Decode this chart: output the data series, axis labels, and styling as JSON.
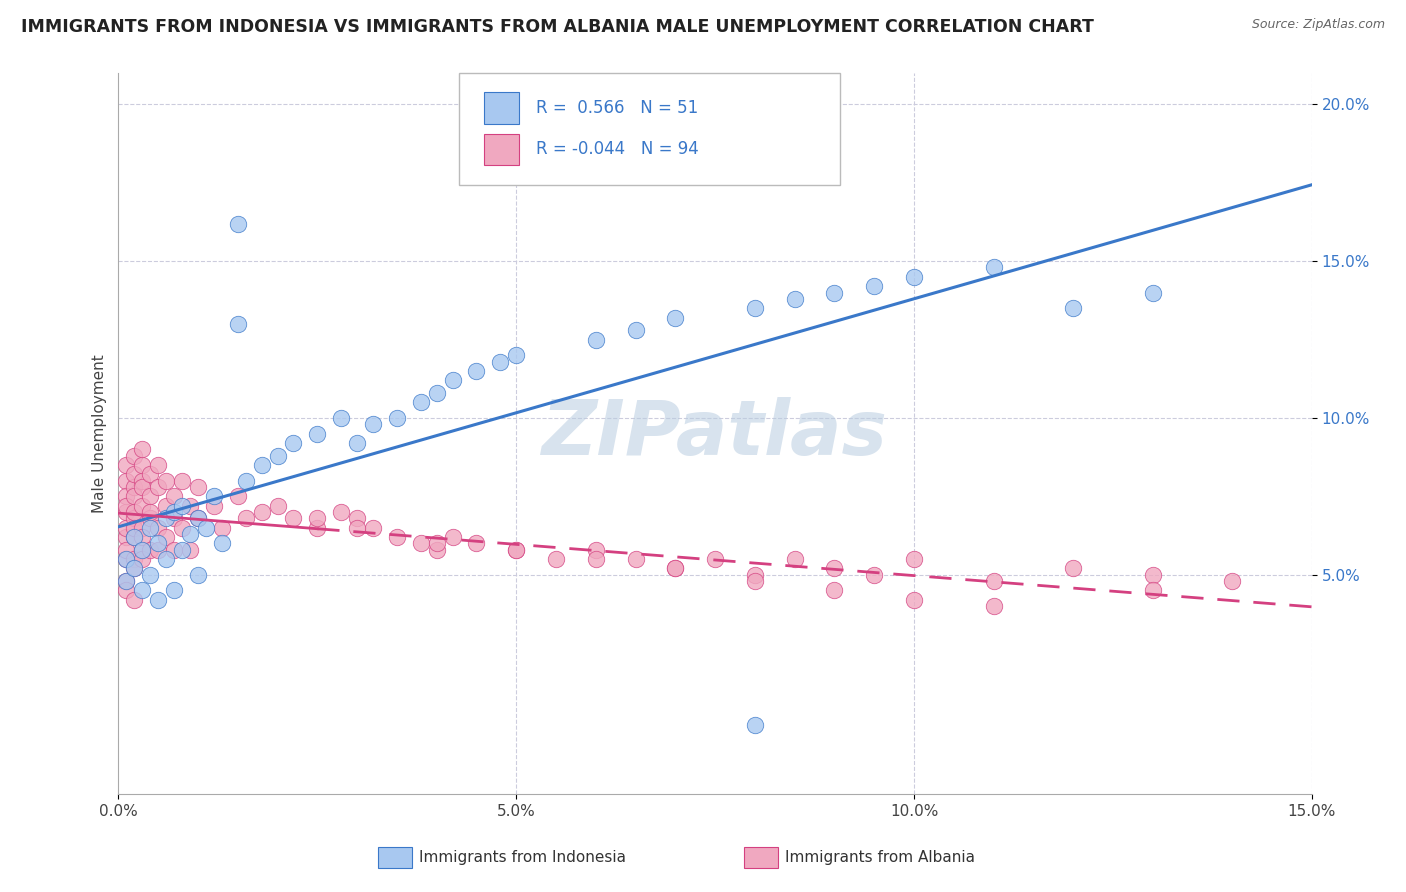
{
  "title": "IMMIGRANTS FROM INDONESIA VS IMMIGRANTS FROM ALBANIA MALE UNEMPLOYMENT CORRELATION CHART",
  "source": "Source: ZipAtlas.com",
  "ylabel": "Male Unemployment",
  "watermark": "ZIPatlas",
  "legend_labels": [
    "Immigrants from Indonesia",
    "Immigrants from Albania"
  ],
  "r_indonesia": 0.566,
  "n_indonesia": 51,
  "r_albania": -0.044,
  "n_albania": 94,
  "color_indonesia": "#a8c8f0",
  "color_albania": "#f0a8c0",
  "line_color_indonesia": "#3a78c9",
  "line_color_albania": "#d44080",
  "xlim": [
    0.0,
    0.15
  ],
  "ylim": [
    -0.02,
    0.21
  ],
  "yticks": [
    0.05,
    0.1,
    0.15,
    0.2
  ],
  "ytick_labels": [
    "5.0%",
    "10.0%",
    "15.0%",
    "20.0%"
  ],
  "xticks": [
    0.0,
    0.05,
    0.1,
    0.15
  ],
  "xtick_labels": [
    "0.0%",
    "5.0%",
    "10.0%",
    "15.0%"
  ],
  "background_color": "#ffffff",
  "grid_color": "#ccccdd",
  "title_fontsize": 12.5,
  "axis_label_fontsize": 11,
  "tick_fontsize": 11,
  "watermark_fontsize": 55,
  "watermark_color": "#b8cce0",
  "watermark_alpha": 0.55,
  "indonesia_x": [
    0.001,
    0.001,
    0.002,
    0.002,
    0.003,
    0.003,
    0.004,
    0.004,
    0.005,
    0.005,
    0.006,
    0.006,
    0.007,
    0.007,
    0.008,
    0.008,
    0.009,
    0.01,
    0.01,
    0.011,
    0.012,
    0.013,
    0.015,
    0.016,
    0.018,
    0.02,
    0.022,
    0.025,
    0.028,
    0.03,
    0.032,
    0.035,
    0.038,
    0.04,
    0.042,
    0.045,
    0.048,
    0.05,
    0.06,
    0.065,
    0.07,
    0.08,
    0.085,
    0.09,
    0.095,
    0.1,
    0.11,
    0.12,
    0.13,
    0.015,
    0.08
  ],
  "indonesia_y": [
    0.055,
    0.048,
    0.062,
    0.052,
    0.058,
    0.045,
    0.065,
    0.05,
    0.06,
    0.042,
    0.068,
    0.055,
    0.07,
    0.045,
    0.072,
    0.058,
    0.063,
    0.068,
    0.05,
    0.065,
    0.075,
    0.06,
    0.162,
    0.08,
    0.085,
    0.088,
    0.092,
    0.095,
    0.1,
    0.092,
    0.098,
    0.1,
    0.105,
    0.108,
    0.112,
    0.115,
    0.118,
    0.12,
    0.125,
    0.128,
    0.132,
    0.135,
    0.138,
    0.14,
    0.142,
    0.145,
    0.148,
    0.135,
    0.14,
    0.13,
    0.002
  ],
  "albania_x": [
    0.001,
    0.001,
    0.001,
    0.001,
    0.001,
    0.001,
    0.001,
    0.001,
    0.001,
    0.001,
    0.002,
    0.002,
    0.002,
    0.002,
    0.002,
    0.002,
    0.002,
    0.002,
    0.002,
    0.002,
    0.003,
    0.003,
    0.003,
    0.003,
    0.003,
    0.003,
    0.003,
    0.003,
    0.003,
    0.004,
    0.004,
    0.004,
    0.004,
    0.004,
    0.005,
    0.005,
    0.005,
    0.005,
    0.006,
    0.006,
    0.006,
    0.007,
    0.007,
    0.007,
    0.008,
    0.008,
    0.009,
    0.009,
    0.01,
    0.01,
    0.012,
    0.013,
    0.015,
    0.016,
    0.018,
    0.02,
    0.022,
    0.025,
    0.028,
    0.03,
    0.032,
    0.035,
    0.038,
    0.04,
    0.042,
    0.045,
    0.05,
    0.055,
    0.06,
    0.065,
    0.07,
    0.075,
    0.08,
    0.085,
    0.09,
    0.095,
    0.1,
    0.11,
    0.12,
    0.13,
    0.13,
    0.14,
    0.025,
    0.03,
    0.04,
    0.05,
    0.06,
    0.07,
    0.08,
    0.09,
    0.1,
    0.11,
    0.001,
    0.002
  ],
  "albania_y": [
    0.055,
    0.07,
    0.062,
    0.08,
    0.048,
    0.075,
    0.065,
    0.085,
    0.058,
    0.072,
    0.068,
    0.078,
    0.055,
    0.082,
    0.062,
    0.088,
    0.07,
    0.075,
    0.052,
    0.065,
    0.072,
    0.08,
    0.058,
    0.085,
    0.065,
    0.078,
    0.062,
    0.09,
    0.055,
    0.075,
    0.068,
    0.082,
    0.058,
    0.07,
    0.078,
    0.065,
    0.085,
    0.058,
    0.072,
    0.08,
    0.062,
    0.075,
    0.058,
    0.068,
    0.08,
    0.065,
    0.072,
    0.058,
    0.078,
    0.068,
    0.072,
    0.065,
    0.075,
    0.068,
    0.07,
    0.072,
    0.068,
    0.065,
    0.07,
    0.068,
    0.065,
    0.062,
    0.06,
    0.058,
    0.062,
    0.06,
    0.058,
    0.055,
    0.058,
    0.055,
    0.052,
    0.055,
    0.05,
    0.055,
    0.052,
    0.05,
    0.055,
    0.048,
    0.052,
    0.05,
    0.045,
    0.048,
    0.068,
    0.065,
    0.06,
    0.058,
    0.055,
    0.052,
    0.048,
    0.045,
    0.042,
    0.04,
    0.045,
    0.042
  ]
}
